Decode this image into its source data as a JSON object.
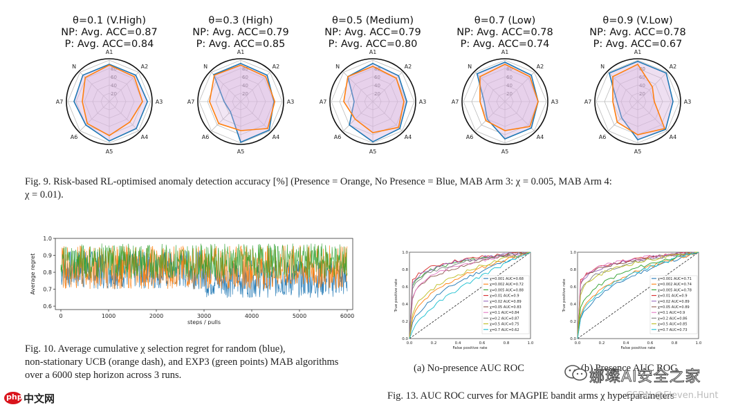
{
  "fig9": {
    "caption_line1": "Fig. 9.    Risk-based RL-optimised anomaly detection accuracy [%] (Presence = Orange, No Presence = Blue, MAB Arm 3: χ = 0.005, MAB Arm 4:",
    "caption_line2": "χ = 0.01).",
    "axis_labels": [
      "A1",
      "A2",
      "A3",
      "A4",
      "A5",
      "A6",
      "A7",
      "N"
    ],
    "ring_labels": [
      "20",
      "40",
      "60",
      "80"
    ],
    "colors": {
      "orange": "#ff7f0e",
      "blue": "#1f77b4",
      "fill": "#d9b8e0"
    },
    "panels": [
      {
        "title": "θ=0.1 (V.High)",
        "np_text": "NP: Avg. ACC=0.87",
        "p_text": "P: Avg. ACC=0.84",
        "np": [
          90,
          90,
          92,
          92,
          95,
          80,
          85,
          90
        ],
        "p": [
          88,
          85,
          80,
          70,
          82,
          75,
          65,
          82
        ]
      },
      {
        "title": "θ=0.3 (High)",
        "np_text": "NP: Avg. ACC=0.79",
        "p_text": "P: Avg. ACC=0.85",
        "np": [
          92,
          90,
          80,
          97,
          98,
          35,
          40,
          92
        ],
        "p": [
          88,
          85,
          82,
          92,
          70,
          75,
          75,
          90
        ]
      },
      {
        "title": "θ=0.5 (Medium)",
        "np_text": "NP: Avg. ACC=0.79",
        "p_text": "P: Avg. ACC=0.80",
        "np": [
          92,
          88,
          82,
          92,
          97,
          80,
          45,
          85
        ],
        "p": [
          85,
          80,
          75,
          88,
          75,
          60,
          70,
          85
        ]
      },
      {
        "title": "θ=0.7 (Low)",
        "np_text": "NP: Avg. ACC=0.78",
        "p_text": "P: Avg. ACC=0.74",
        "np": [
          95,
          90,
          80,
          90,
          90,
          60,
          50,
          95
        ],
        "p": [
          90,
          85,
          80,
          85,
          70,
          65,
          60,
          85
        ]
      },
      {
        "title": "θ=0.9 (V.Low)",
        "np_text": "NP: Avg. ACC=0.78",
        "p_text": "P: Avg. ACC=0.67",
        "np": [
          97,
          97,
          85,
          95,
          92,
          55,
          50,
          97
        ],
        "p": [
          90,
          50,
          40,
          92,
          80,
          70,
          60,
          85
        ]
      }
    ]
  },
  "fig10": {
    "ylabel": "Average regret",
    "xlabel": "steps / pulls",
    "yticks": [
      "1.0",
      "0.9",
      "0.8",
      "0.7",
      "0.6"
    ],
    "xticks": [
      "0",
      "1000",
      "2000",
      "3000",
      "4000",
      "5000",
      "6000"
    ],
    "caption_line1": "Fig. 10.    Average cumulative χ selection regret for random (blue),",
    "caption_line2": "non-stationary UCB (orange dash), and EXP3 (green points) MAB algorithms",
    "caption_line3": "over a 6000 step horizon across 3 runs."
  },
  "fig13": {
    "ylabel": "True positive rate",
    "xlabel": "False positive rate",
    "ticks": [
      "0.0",
      "0.2",
      "0.4",
      "0.6",
      "0.8",
      "1.0"
    ],
    "caption": "Fig. 13.    AUC ROC curves for MAGPIE bandit arms χ hyperparameters",
    "sub_a": "(a) No-presence AUC ROC",
    "sub_b": "(b) Presence AUC ROC",
    "legend_a": [
      "χ=0.001 AUC=0.68",
      "χ=0.002 AUC=0.72",
      "χ=0.005 AUC=0.88",
      "χ=0.01 AUC=0.9",
      "χ=0.02 AUC=0.89",
      "χ=0.05 AUC=0.83",
      "χ=0.1 AUC=0.84",
      "χ=0.2 AUC=0.87",
      "χ=0.5 AUC=0.75",
      "χ=0.7 AUC=0.62"
    ],
    "legend_b": [
      "χ=0.001 AUC=0.71",
      "χ=0.002 AUC=0.74",
      "χ=0.005 AUC=0.78",
      "χ=0.01 AUC=0.9",
      "χ=0.02 AUC=0.89",
      "χ=0.05 AUC=0.89",
      "χ=0.1 AUC=0.9",
      "χ=0.2 AUC=0.86",
      "χ=0.5 AUC=0.85",
      "χ=0.7 AUC=0.73"
    ],
    "auc_a": [
      0.68,
      0.72,
      0.88,
      0.9,
      0.89,
      0.83,
      0.84,
      0.87,
      0.75,
      0.62
    ],
    "auc_b": [
      0.71,
      0.74,
      0.78,
      0.9,
      0.89,
      0.89,
      0.9,
      0.86,
      0.85,
      0.73
    ],
    "colors": [
      "#1f77b4",
      "#ff7f0e",
      "#2ca02c",
      "#d62728",
      "#9467bd",
      "#8c564b",
      "#e377c2",
      "#7f7f7f",
      "#bcbd22",
      "#17becf"
    ]
  },
  "watermarks": {
    "wechat": "娜璨AI安全之家",
    "csdn": "CSDN @Eleven.Hunt",
    "php_logo": "php",
    "php_site": "中文网"
  },
  "chart_data": [
    {
      "type": "radar",
      "title": "θ=0.1 (V.High)",
      "categories": [
        "A1",
        "A2",
        "A3",
        "A4",
        "A5",
        "A6",
        "A7",
        "N"
      ],
      "series": [
        {
          "name": "No Presence",
          "values": [
            90,
            90,
            92,
            92,
            95,
            80,
            85,
            90
          ]
        },
        {
          "name": "Presence",
          "values": [
            88,
            85,
            80,
            70,
            82,
            75,
            65,
            82
          ]
        }
      ],
      "ylim": [
        0,
        100
      ]
    },
    {
      "type": "radar",
      "title": "θ=0.3 (High)",
      "categories": [
        "A1",
        "A2",
        "A3",
        "A4",
        "A5",
        "A6",
        "A7",
        "N"
      ],
      "series": [
        {
          "name": "No Presence",
          "values": [
            92,
            90,
            80,
            97,
            98,
            35,
            40,
            92
          ]
        },
        {
          "name": "Presence",
          "values": [
            88,
            85,
            82,
            92,
            70,
            75,
            75,
            90
          ]
        }
      ],
      "ylim": [
        0,
        100
      ]
    },
    {
      "type": "radar",
      "title": "θ=0.5 (Medium)",
      "categories": [
        "A1",
        "A2",
        "A3",
        "A4",
        "A5",
        "A6",
        "A7",
        "N"
      ],
      "series": [
        {
          "name": "No Presence",
          "values": [
            92,
            88,
            82,
            92,
            97,
            80,
            45,
            85
          ]
        },
        {
          "name": "Presence",
          "values": [
            85,
            80,
            75,
            88,
            75,
            60,
            70,
            85
          ]
        }
      ],
      "ylim": [
        0,
        100
      ]
    },
    {
      "type": "radar",
      "title": "θ=0.7 (Low)",
      "categories": [
        "A1",
        "A2",
        "A3",
        "A4",
        "A5",
        "A6",
        "A7",
        "N"
      ],
      "series": [
        {
          "name": "No Presence",
          "values": [
            95,
            90,
            80,
            90,
            90,
            60,
            50,
            95
          ]
        },
        {
          "name": "Presence",
          "values": [
            90,
            85,
            80,
            85,
            70,
            65,
            60,
            85
          ]
        }
      ],
      "ylim": [
        0,
        100
      ]
    },
    {
      "type": "radar",
      "title": "θ=0.9 (V.Low)",
      "categories": [
        "A1",
        "A2",
        "A3",
        "A4",
        "A5",
        "A6",
        "A7",
        "N"
      ],
      "series": [
        {
          "name": "No Presence",
          "values": [
            97,
            97,
            85,
            95,
            92,
            55,
            50,
            97
          ]
        },
        {
          "name": "Presence",
          "values": [
            90,
            50,
            40,
            92,
            80,
            70,
            60,
            85
          ]
        }
      ],
      "ylim": [
        0,
        100
      ]
    },
    {
      "type": "line",
      "title": "",
      "xlabel": "steps / pulls",
      "ylabel": "Average regret",
      "xlim": [
        0,
        6000
      ],
      "ylim": [
        0.58,
        1.0
      ],
      "series": [
        {
          "name": "random",
          "band": [
            0.65,
            0.93
          ]
        },
        {
          "name": "non-stationary UCB",
          "band": [
            0.7,
            0.96
          ]
        },
        {
          "name": "EXP3",
          "band": [
            0.75,
            0.97
          ]
        }
      ]
    },
    {
      "type": "line",
      "title": "(a) No-presence AUC ROC",
      "xlabel": "False positive rate",
      "ylabel": "True positive rate",
      "xlim": [
        0,
        1
      ],
      "ylim": [
        0,
        1
      ]
    },
    {
      "type": "line",
      "title": "(b) Presence AUC ROC",
      "xlabel": "False positive rate",
      "ylabel": "True positive rate",
      "xlim": [
        0,
        1
      ],
      "ylim": [
        0,
        1
      ]
    }
  ]
}
